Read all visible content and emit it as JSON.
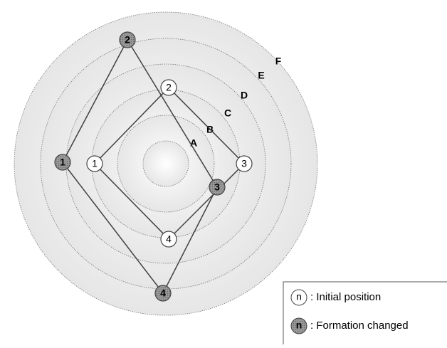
{
  "rings": [
    "A",
    "B",
    "C",
    "D",
    "E",
    "F"
  ],
  "initial_nodes": [
    "1",
    "2",
    "3",
    "4"
  ],
  "changed_nodes": [
    "1",
    "2",
    "3",
    "4"
  ],
  "legend": {
    "initial_symbol": "n",
    "initial_label": ": Initial position",
    "changed_symbol": "n",
    "changed_label": ": Formation changed"
  }
}
